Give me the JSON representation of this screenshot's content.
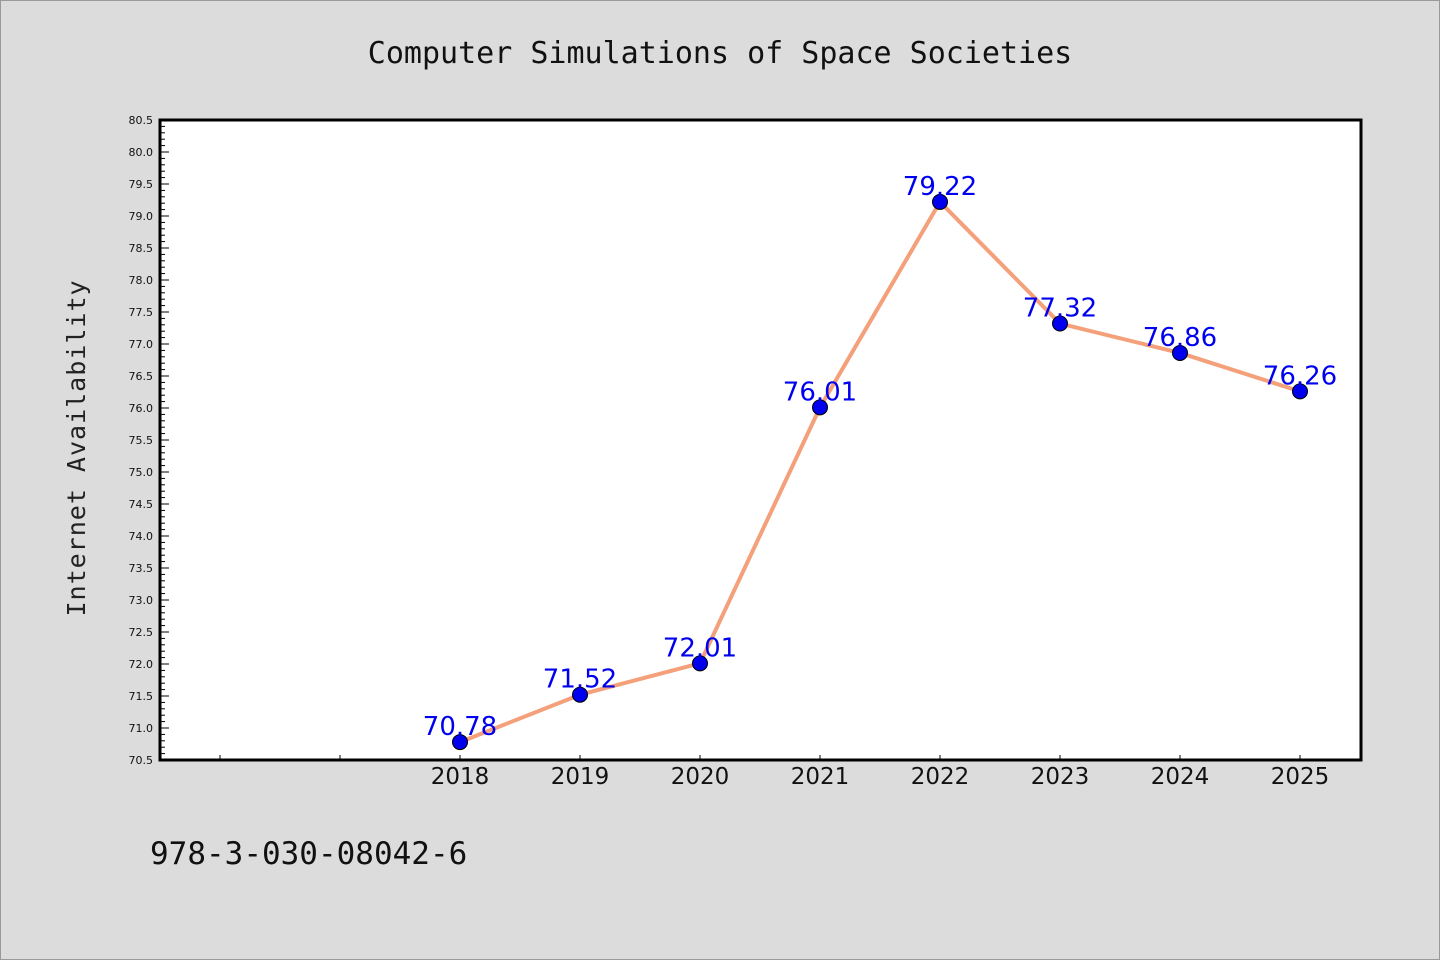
{
  "chart_data": {
    "type": "line",
    "title": "Computer Simulations of Space Societies",
    "xlabel": "",
    "ylabel": "Internet Availability",
    "categories": [
      "2018",
      "2019",
      "2020",
      "2021",
      "2022",
      "2023",
      "2024",
      "2025"
    ],
    "series": [
      {
        "values": [
          70.78,
          71.52,
          72.01,
          76.01,
          79.22,
          77.32,
          76.86,
          76.26
        ],
        "line_color": "#f4a07a",
        "marker_color": "#0000ee"
      }
    ],
    "data_labels": [
      "70.78",
      "71.52",
      "72.01",
      "76.01",
      "79.22",
      "77.32",
      "76.86",
      "76.26"
    ],
    "ylim": [
      70.5,
      80.5
    ],
    "yticks": [
      "70.5",
      "71.0",
      "71.5",
      "72.0",
      "72.5",
      "73.0",
      "73.5",
      "74.0",
      "74.5",
      "75.0",
      "75.5",
      "76.0",
      "76.5",
      "77.0",
      "77.5",
      "78.0",
      "78.5",
      "79.0",
      "79.5",
      "80.0",
      "80.5"
    ],
    "grid": false,
    "legend": "none"
  },
  "footer": {
    "isbn": "978-3-030-08042-6"
  },
  "colors": {
    "background": "#dcdcdc",
    "plot_background": "#ffffff",
    "line": "#f4a07a",
    "marker": "#0000ee",
    "label": "#0000ee"
  }
}
